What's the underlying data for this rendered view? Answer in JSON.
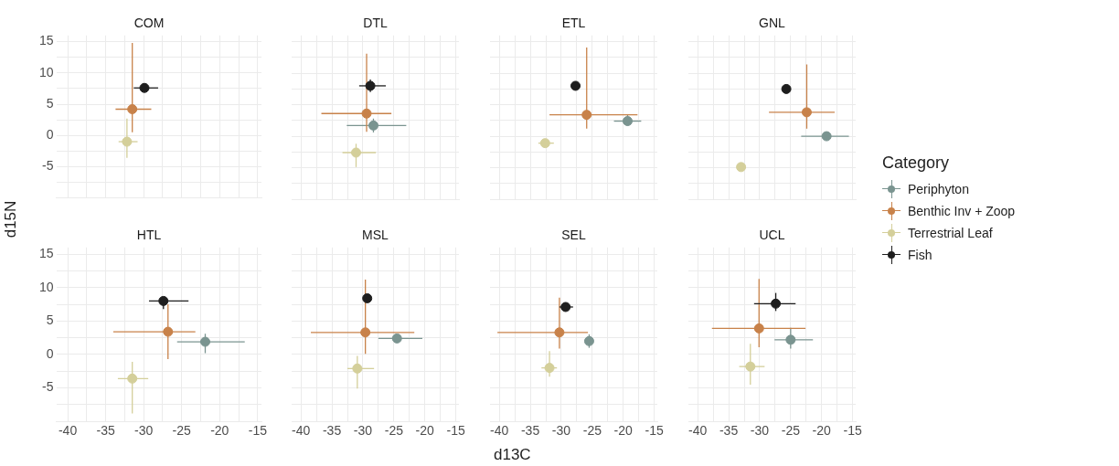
{
  "chart_data": [
    {
      "type": "scatter",
      "title": "COM",
      "ylabel": "d15N",
      "legend": "right",
      "legend_title": "Category",
      "marker": "circle",
      "grid": true,
      "tick_labels": "y",
      "xlim": [
        -41.5,
        -14.5
      ],
      "ylim": [
        -10,
        16
      ],
      "xticks": [
        -40,
        {
          "value": -37.5,
          "label": null
        },
        -35,
        {
          "value": -32.5,
          "label": null
        },
        -30,
        {
          "value": -27.5,
          "label": null
        },
        -25,
        {
          "value": -22.5,
          "label": null
        },
        -20,
        {
          "value": -17.5,
          "label": null
        },
        -15
      ],
      "yticks": [
        {
          "value": -7.5,
          "label": null
        },
        -5,
        {
          "value": -2.5,
          "label": null
        },
        0,
        {
          "value": 2.5,
          "label": null
        },
        5,
        {
          "value": 7.5,
          "label": null
        },
        10,
        {
          "value": 12.5,
          "label": null
        },
        15
      ],
      "series": [
        {
          "name": "Periphyton",
          "color": "#7a9490",
          "x": [
            null
          ],
          "values": [
            null
          ]
        },
        {
          "name": "Benthic Inv + Zoop",
          "color": "#c8824a",
          "x": [
            -31.5
          ],
          "values": [
            4.2
          ],
          "xerrors": [
            [
              -33.7,
              -29.0
            ]
          ],
          "errors": [
            [
              0.5,
              14.8
            ]
          ]
        },
        {
          "name": "Terrestrial Leaf",
          "color": "#d4cf9a",
          "x": [
            -32.2
          ],
          "values": [
            -1.0
          ],
          "xerrors": [
            [
              -33.3,
              -30.8
            ]
          ],
          "errors": [
            [
              -3.6,
              2.7
            ]
          ]
        },
        {
          "name": "Fish",
          "color": "#1e1e1e",
          "x": [
            -29.9
          ],
          "values": [
            7.6
          ],
          "xerrors": [
            [
              -31.3,
              -28.1
            ]
          ],
          "errors": [
            [
              6.9,
              8.3
            ]
          ]
        }
      ]
    },
    {
      "type": "scatter",
      "title": "DTL",
      "marker": "circle",
      "grid": true,
      "tick_labels": false,
      "xlim": [
        -41.5,
        -14.5
      ],
      "ylim": [
        -10,
        16
      ],
      "xticks": [
        -40,
        {
          "value": -37.5,
          "label": null
        },
        -35,
        {
          "value": -32.5,
          "label": null
        },
        -30,
        {
          "value": -27.5,
          "label": null
        },
        -25,
        {
          "value": -22.5,
          "label": null
        },
        -20,
        {
          "value": -17.5,
          "label": null
        },
        -15
      ],
      "yticks": [
        {
          "value": -7.5,
          "label": null
        },
        -5,
        {
          "value": -2.5,
          "label": null
        },
        0,
        {
          "value": 2.5,
          "label": null
        },
        5,
        {
          "value": 7.5,
          "label": null
        },
        10,
        {
          "value": 12.5,
          "label": null
        },
        15
      ],
      "series": [
        {
          "color": "#7a9490",
          "x": [
            -28.3
          ],
          "values": [
            1.7
          ],
          "xerrors": [
            [
              -32.6,
              -23.0
            ]
          ],
          "errors": [
            [
              0.6,
              2.8
            ]
          ]
        },
        {
          "color": "#c8824a",
          "x": [
            -29.4
          ],
          "values": [
            3.6
          ],
          "xerrors": [
            [
              -36.7,
              -25.4
            ]
          ],
          "errors": [
            [
              0.7,
              13.1
            ]
          ]
        },
        {
          "color": "#d4cf9a",
          "x": [
            -31.1
          ],
          "values": [
            -2.6
          ],
          "xerrors": [
            [
              -33.3,
              -27.9
            ]
          ],
          "errors": [
            [
              -4.9,
              -1.2
            ]
          ]
        },
        {
          "color": "#1e1e1e",
          "x": [
            -28.8
          ],
          "values": [
            8.0
          ],
          "xerrors": [
            [
              -30.6,
              -26.3
            ]
          ],
          "errors": [
            [
              7.0,
              9.0
            ]
          ]
        }
      ]
    },
    {
      "type": "scatter",
      "title": "ETL",
      "marker": "circle",
      "grid": true,
      "tick_labels": false,
      "xlim": [
        -41.5,
        -14.5
      ],
      "ylim": [
        -10,
        16
      ],
      "xticks": [
        -40,
        {
          "value": -37.5,
          "label": null
        },
        -35,
        {
          "value": -32.5,
          "label": null
        },
        -30,
        {
          "value": -27.5,
          "label": null
        },
        -25,
        {
          "value": -22.5,
          "label": null
        },
        -20,
        {
          "value": -17.5,
          "label": null
        },
        -15
      ],
      "yticks": [
        {
          "value": -7.5,
          "label": null
        },
        -5,
        {
          "value": -2.5,
          "label": null
        },
        0,
        {
          "value": 2.5,
          "label": null
        },
        5,
        {
          "value": 7.5,
          "label": null
        },
        10,
        {
          "value": 12.5,
          "label": null
        },
        15
      ],
      "series": [
        {
          "color": "#7a9490",
          "x": [
            -19.3
          ],
          "values": [
            2.4
          ],
          "xerrors": [
            [
              -21.5,
              -17.1
            ]
          ],
          "errors": [
            [
              1.7,
              3.5
            ]
          ]
        },
        {
          "color": "#c8824a",
          "x": [
            -25.9
          ],
          "values": [
            3.4
          ],
          "xerrors": [
            [
              -31.9,
              -17.7
            ]
          ],
          "errors": [
            [
              1.2,
              14.1
            ]
          ]
        },
        {
          "color": "#d4cf9a",
          "x": [
            -32.6
          ],
          "values": [
            -1.1
          ],
          "xerrors": [
            [
              -33.7,
              -31.2
            ]
          ],
          "errors": [
            null
          ]
        },
        {
          "color": "#1e1e1e",
          "x": [
            -27.7
          ],
          "values": [
            8.0
          ],
          "xerrors": [
            null
          ],
          "errors": [
            null
          ]
        }
      ]
    },
    {
      "type": "scatter",
      "title": "GNL",
      "marker": "circle",
      "grid": true,
      "tick_labels": false,
      "xlim": [
        -41.5,
        -14.5
      ],
      "ylim": [
        -10,
        16
      ],
      "xticks": [
        -40,
        {
          "value": -37.5,
          "label": null
        },
        -35,
        {
          "value": -32.5,
          "label": null
        },
        -30,
        {
          "value": -27.5,
          "label": null
        },
        -25,
        {
          "value": -22.5,
          "label": null
        },
        -20,
        {
          "value": -17.5,
          "label": null
        },
        -15
      ],
      "yticks": [
        {
          "value": -7.5,
          "label": null
        },
        -5,
        {
          "value": -2.5,
          "label": null
        },
        0,
        {
          "value": 2.5,
          "label": null
        },
        5,
        {
          "value": 7.5,
          "label": null
        },
        10,
        {
          "value": 12.5,
          "label": null
        },
        15
      ],
      "series": [
        {
          "color": "#7a9490",
          "x": [
            -19.2
          ],
          "values": [
            0.0
          ],
          "xerrors": [
            [
              -23.3,
              -15.6
            ]
          ],
          "errors": [
            null
          ]
        },
        {
          "color": "#c8824a",
          "x": [
            -22.4
          ],
          "values": [
            3.8
          ],
          "xerrors": [
            [
              -28.5,
              -17.9
            ]
          ],
          "errors": [
            [
              1.2,
              11.4
            ]
          ]
        },
        {
          "color": "#d4cf9a",
          "x": [
            -33.0
          ],
          "values": [
            -4.9
          ],
          "xerrors": [
            null
          ],
          "errors": [
            null
          ]
        },
        {
          "color": "#1e1e1e",
          "x": [
            -25.7
          ],
          "values": [
            7.5
          ],
          "xerrors": [
            null
          ],
          "errors": [
            null
          ]
        }
      ]
    },
    {
      "type": "scatter",
      "title": "HTL",
      "marker": "circle",
      "grid": true,
      "xlim": [
        -41.5,
        -14.5
      ],
      "ylim": [
        -10,
        16
      ],
      "xticks": [
        -40,
        {
          "value": -37.5,
          "label": null
        },
        -35,
        {
          "value": -32.5,
          "label": null
        },
        -30,
        {
          "value": -27.5,
          "label": null
        },
        -25,
        {
          "value": -22.5,
          "label": null
        },
        -20,
        {
          "value": -17.5,
          "label": null
        },
        -15
      ],
      "yticks": [
        {
          "value": -7.5,
          "label": null
        },
        -5,
        {
          "value": -2.5,
          "label": null
        },
        0,
        {
          "value": 2.5,
          "label": null
        },
        5,
        {
          "value": 7.5,
          "label": null
        },
        10,
        {
          "value": 12.5,
          "label": null
        },
        15
      ],
      "series": [
        {
          "color": "#7a9490",
          "x": [
            -21.9
          ],
          "values": [
            1.9
          ],
          "xerrors": [
            [
              -25.6,
              -16.7
            ]
          ],
          "errors": [
            [
              0.2,
              3.1
            ]
          ]
        },
        {
          "color": "#c8824a",
          "x": [
            -26.8
          ],
          "values": [
            3.4
          ],
          "xerrors": [
            [
              -34.0,
              -23.2
            ]
          ],
          "errors": [
            [
              -0.7,
              7.5
            ]
          ]
        },
        {
          "color": "#d4cf9a",
          "x": [
            -31.5
          ],
          "values": [
            -3.6
          ],
          "xerrors": [
            [
              -33.4,
              -29.4
            ]
          ],
          "errors": [
            [
              -8.8,
              -1.1
            ]
          ]
        },
        {
          "color": "#1e1e1e",
          "x": [
            -27.4
          ],
          "values": [
            8.0
          ],
          "xerrors": [
            [
              -29.3,
              -24.1
            ]
          ],
          "errors": [
            [
              6.8,
              8.6
            ]
          ]
        }
      ]
    },
    {
      "type": "scatter",
      "title": "MSL",
      "xlabel": "d13C",
      "marker": "circle",
      "grid": true,
      "tick_labels": "x",
      "xlim": [
        -41.5,
        -14.5
      ],
      "ylim": [
        -10,
        16
      ],
      "xticks": [
        -40,
        {
          "value": -37.5,
          "label": null
        },
        -35,
        {
          "value": -32.5,
          "label": null
        },
        -30,
        {
          "value": -27.5,
          "label": null
        },
        -25,
        {
          "value": -22.5,
          "label": null
        },
        -20,
        {
          "value": -17.5,
          "label": null
        },
        -15
      ],
      "yticks": [
        {
          "value": -7.5,
          "label": null
        },
        -5,
        {
          "value": -2.5,
          "label": null
        },
        0,
        {
          "value": 2.5,
          "label": null
        },
        5,
        {
          "value": 7.5,
          "label": null
        },
        10,
        {
          "value": 12.5,
          "label": null
        },
        15
      ],
      "series": [
        {
          "color": "#7a9490",
          "x": [
            -24.5
          ],
          "values": [
            2.4
          ],
          "xerrors": [
            [
              -27.5,
              -20.4
            ]
          ],
          "errors": [
            null
          ]
        },
        {
          "color": "#c8824a",
          "x": [
            -29.6
          ],
          "values": [
            3.3
          ],
          "xerrors": [
            [
              -38.4,
              -21.7
            ]
          ],
          "errors": [
            [
              0.1,
              11.2
            ]
          ]
        },
        {
          "color": "#d4cf9a",
          "x": [
            -30.9
          ],
          "values": [
            -2.1
          ],
          "xerrors": [
            [
              -32.5,
              -28.2
            ]
          ],
          "errors": [
            [
              -5.1,
              -0.2
            ]
          ]
        },
        {
          "color": "#1e1e1e",
          "x": [
            -29.3
          ],
          "values": [
            8.4
          ],
          "xerrors": [
            null
          ],
          "errors": [
            null
          ]
        }
      ]
    },
    {
      "type": "scatter",
      "title": "SEL",
      "marker": "circle",
      "grid": true,
      "tick_labels": "x",
      "xlim": [
        -41.5,
        -14.5
      ],
      "ylim": [
        -10,
        16
      ],
      "xticks": [
        -40,
        {
          "value": -37.5,
          "label": null
        },
        -35,
        {
          "value": -32.5,
          "label": null
        },
        -30,
        {
          "value": -27.5,
          "label": null
        },
        -25,
        {
          "value": -22.5,
          "label": null
        },
        -20,
        {
          "value": -17.5,
          "label": null
        },
        -15
      ],
      "yticks": [
        {
          "value": -7.5,
          "label": null
        },
        -5,
        {
          "value": -2.5,
          "label": null
        },
        0,
        {
          "value": 2.5,
          "label": null
        },
        5,
        {
          "value": 7.5,
          "label": null
        },
        10,
        {
          "value": 12.5,
          "label": null
        },
        15
      ],
      "series": [
        {
          "color": "#7a9490",
          "x": [
            -25.5
          ],
          "values": [
            2.0
          ],
          "xerrors": [
            null
          ],
          "errors": [
            [
              1.0,
              3.0
            ]
          ]
        },
        {
          "color": "#c8824a",
          "x": [
            -30.3
          ],
          "values": [
            3.3
          ],
          "xerrors": [
            [
              -40.3,
              -25.7
            ]
          ],
          "errors": [
            [
              0.9,
              8.5
            ]
          ]
        },
        {
          "color": "#d4cf9a",
          "x": [
            -31.9
          ],
          "values": [
            -2.0
          ],
          "xerrors": [
            [
              -33.2,
              -30.7
            ]
          ],
          "errors": [
            [
              -3.3,
              0.5
            ]
          ]
        },
        {
          "color": "#1e1e1e",
          "x": [
            -29.3
          ],
          "values": [
            7.1
          ],
          "xerrors": [
            [
              -30.3,
              -28.1
            ]
          ],
          "errors": [
            null
          ]
        }
      ]
    },
    {
      "type": "scatter",
      "title": "UCL",
      "marker": "circle",
      "grid": true,
      "tick_labels": "x",
      "xlim": [
        -41.5,
        -14.5
      ],
      "ylim": [
        -10,
        16
      ],
      "xticks": [
        -40,
        {
          "value": -37.5,
          "label": null
        },
        -35,
        {
          "value": -32.5,
          "label": null
        },
        -30,
        {
          "value": -27.5,
          "label": null
        },
        -25,
        {
          "value": -22.5,
          "label": null
        },
        -20,
        {
          "value": -17.5,
          "label": null
        },
        -15
      ],
      "yticks": [
        {
          "value": -7.5,
          "label": null
        },
        -5,
        {
          "value": -2.5,
          "label": null
        },
        0,
        {
          "value": 2.5,
          "label": null
        },
        5,
        {
          "value": 7.5,
          "label": null
        },
        10,
        {
          "value": 12.5,
          "label": null
        },
        15
      ],
      "series": [
        {
          "color": "#7a9490",
          "x": [
            -25.0
          ],
          "values": [
            2.2
          ],
          "xerrors": [
            [
              -27.6,
              -21.4
            ]
          ],
          "errors": [
            [
              0.9,
              4.0
            ]
          ]
        },
        {
          "color": "#c8824a",
          "x": [
            -30.1
          ],
          "values": [
            3.9
          ],
          "xerrors": [
            [
              -37.7,
              -22.6
            ]
          ],
          "errors": [
            [
              1.1,
              11.3
            ]
          ]
        },
        {
          "color": "#d4cf9a",
          "x": [
            -31.5
          ],
          "values": [
            -1.8
          ],
          "xerrors": [
            [
              -33.3,
              -29.2
            ]
          ],
          "errors": [
            [
              -4.5,
              1.6
            ]
          ]
        },
        {
          "color": "#1e1e1e",
          "x": [
            -27.4
          ],
          "values": [
            7.6
          ],
          "xerrors": [
            [
              -30.9,
              -24.2
            ]
          ],
          "errors": [
            [
              6.5,
              9.2
            ]
          ]
        }
      ]
    }
  ]
}
